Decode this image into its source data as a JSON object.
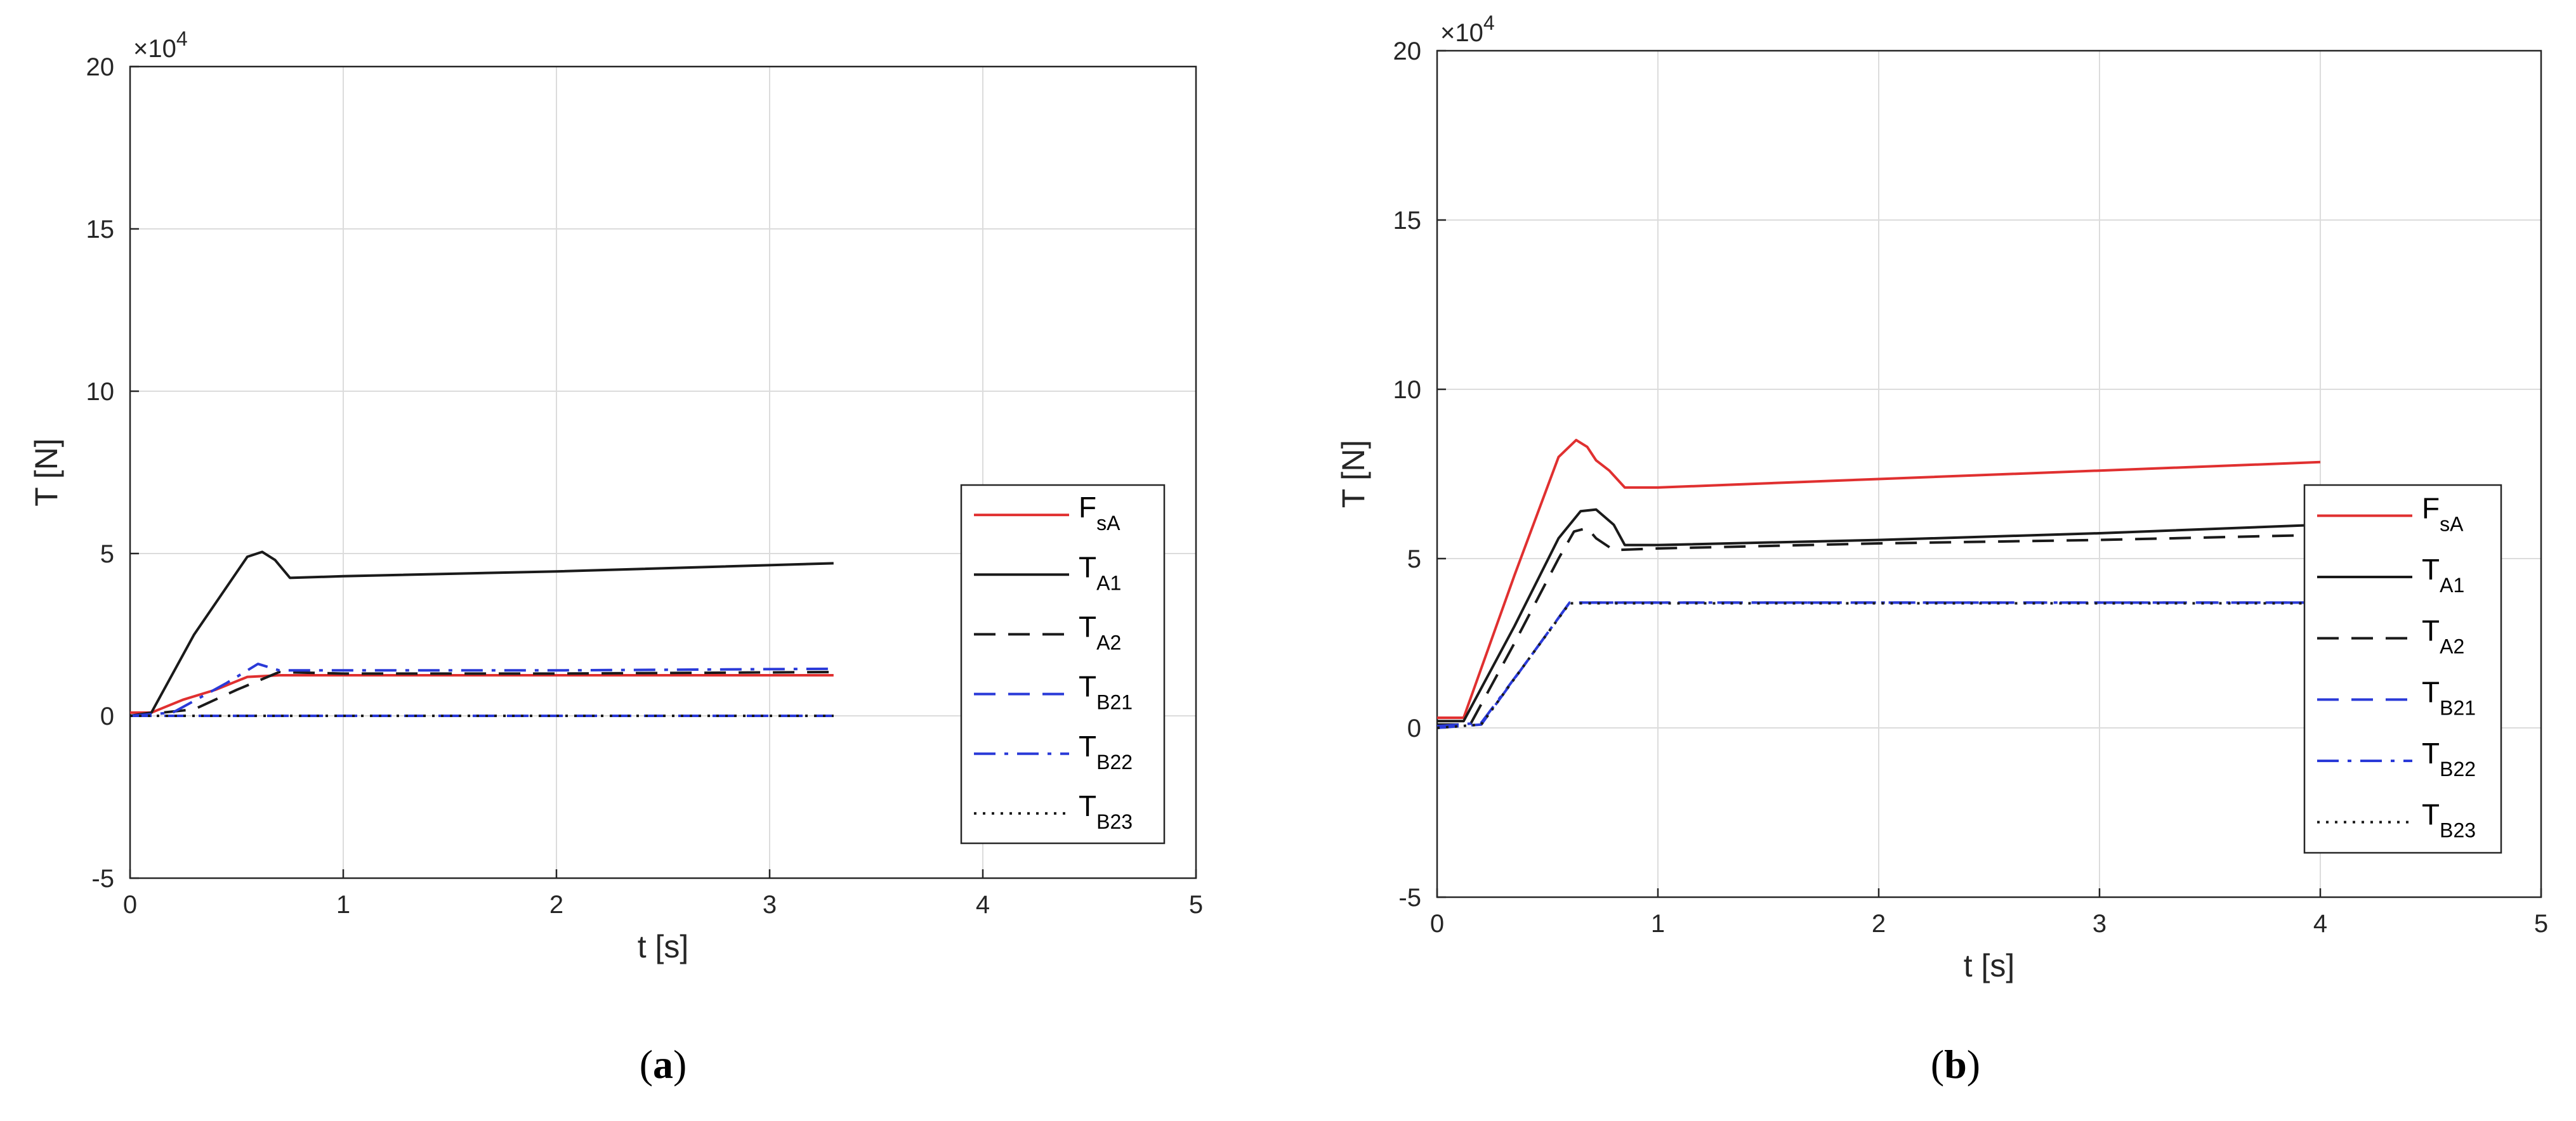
{
  "chart_data": [
    {
      "type": "line",
      "panel_label": "a",
      "xlabel": "t [s]",
      "ylabel": "T [N]",
      "multiplier": "×10",
      "multiplier_exp": "4",
      "xlim": [
        0,
        5
      ],
      "ylim": [
        -5,
        20
      ],
      "xticks": [
        "0",
        "1",
        "2",
        "3",
        "4",
        "5"
      ],
      "yticks": [
        "-5",
        "0",
        "5",
        "10",
        "15",
        "20"
      ],
      "grid": true,
      "legend_position": "right",
      "series": [
        {
          "name": "F",
          "sub": "sA",
          "color": "#e03030",
          "dash": "solid",
          "x": [
            0,
            0.1,
            0.25,
            0.4,
            0.55,
            0.7,
            1.0,
            2.0,
            3.3
          ],
          "y": [
            0.1,
            0.1,
            0.5,
            0.8,
            1.2,
            1.25,
            1.25,
            1.25,
            1.25
          ]
        },
        {
          "name": "T",
          "sub": "A1",
          "color": "#1a1a1a",
          "dash": "solid",
          "x": [
            0,
            0.1,
            0.3,
            0.55,
            0.62,
            0.68,
            0.75,
            1.0,
            2.0,
            3.3
          ],
          "y": [
            0,
            0.1,
            2.5,
            4.9,
            5.05,
            4.8,
            4.25,
            4.3,
            4.45,
            4.7
          ]
        },
        {
          "name": "T",
          "sub": "A2",
          "color": "#1a1a1a",
          "dash": "dashed",
          "x": [
            0,
            0.3,
            0.5,
            0.7,
            1.0,
            2.0,
            3.3
          ],
          "y": [
            0,
            0.2,
            0.8,
            1.35,
            1.3,
            1.3,
            1.35
          ]
        },
        {
          "name": "T",
          "sub": "B21",
          "color": "#2a3ad8",
          "dash": "dashed",
          "x": [
            0,
            3.3
          ],
          "y": [
            0,
            0
          ]
        },
        {
          "name": "T",
          "sub": "B22",
          "color": "#2a3ad8",
          "dash": "dashdot",
          "x": [
            0,
            0.2,
            0.45,
            0.6,
            0.7,
            1.0,
            2.0,
            3.3
          ],
          "y": [
            0,
            0.1,
            1.0,
            1.6,
            1.4,
            1.4,
            1.4,
            1.45
          ]
        },
        {
          "name": "T",
          "sub": "B23",
          "color": "#1a1a1a",
          "dash": "dotted",
          "x": [
            0,
            3.3
          ],
          "y": [
            0,
            0
          ]
        }
      ]
    },
    {
      "type": "line",
      "panel_label": "b",
      "xlabel": "t [s]",
      "ylabel": "T [N]",
      "multiplier": "×10",
      "multiplier_exp": "4",
      "xlim": [
        0,
        5
      ],
      "ylim": [
        -5,
        20
      ],
      "xticks": [
        "0",
        "1",
        "2",
        "3",
        "4",
        "5"
      ],
      "yticks": [
        "-5",
        "0",
        "5",
        "10",
        "15",
        "20"
      ],
      "grid": true,
      "legend_position": "right",
      "series": [
        {
          "name": "F",
          "sub": "sA",
          "color": "#e03030",
          "dash": "solid",
          "x": [
            0,
            0.12,
            0.35,
            0.55,
            0.63,
            0.68,
            0.72,
            0.78,
            0.85,
            1.0,
            2.0,
            3.0,
            4.0
          ],
          "y": [
            0.3,
            0.3,
            4.5,
            8.0,
            8.5,
            8.3,
            7.9,
            7.6,
            7.1,
            7.1,
            7.35,
            7.6,
            7.85
          ]
        },
        {
          "name": "T",
          "sub": "A1",
          "color": "#1a1a1a",
          "dash": "solid",
          "x": [
            0,
            0.12,
            0.35,
            0.55,
            0.65,
            0.72,
            0.8,
            0.85,
            1.0,
            2.0,
            3.0,
            4.0
          ],
          "y": [
            0.2,
            0.2,
            3.0,
            5.6,
            6.4,
            6.45,
            6.0,
            5.4,
            5.4,
            5.55,
            5.75,
            6.0
          ]
        },
        {
          "name": "T",
          "sub": "A2",
          "color": "#1a1a1a",
          "dash": "dashed",
          "x": [
            0,
            0.15,
            0.35,
            0.55,
            0.62,
            0.68,
            0.72,
            0.8,
            1.0,
            2.0,
            3.0,
            4.0
          ],
          "y": [
            0.1,
            0.1,
            2.5,
            5.0,
            5.8,
            5.9,
            5.6,
            5.25,
            5.3,
            5.45,
            5.55,
            5.7
          ]
        },
        {
          "name": "T",
          "sub": "B21",
          "color": "#2a3ad8",
          "dash": "dashed",
          "x": [
            0,
            0.2,
            0.4,
            0.6,
            1.0,
            2.0,
            3.0,
            3.95
          ],
          "y": [
            0,
            0.1,
            1.9,
            3.7,
            3.7,
            3.7,
            3.7,
            3.7
          ]
        },
        {
          "name": "T",
          "sub": "B22",
          "color": "#2a3ad8",
          "dash": "dashdot",
          "x": [
            0,
            0.2,
            0.4,
            0.6,
            1.0,
            2.0,
            3.0,
            3.95
          ],
          "y": [
            0.05,
            0.15,
            1.9,
            3.7,
            3.7,
            3.7,
            3.7,
            3.7
          ]
        },
        {
          "name": "T",
          "sub": "B23",
          "color": "#1a1a1a",
          "dash": "dotted",
          "x": [
            0,
            0.2,
            0.4,
            0.6,
            1.0,
            2.0,
            3.0,
            3.95
          ],
          "y": [
            0,
            0.1,
            1.9,
            3.68,
            3.68,
            3.68,
            3.68,
            3.68
          ]
        }
      ]
    }
  ]
}
